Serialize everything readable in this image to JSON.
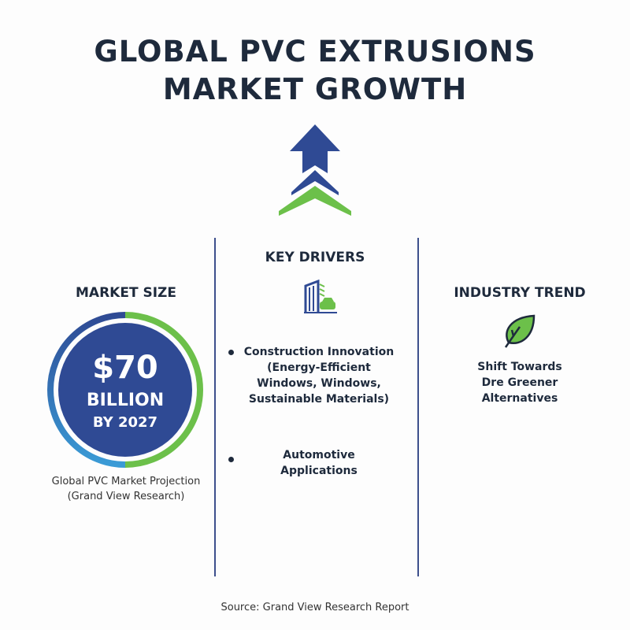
{
  "title": {
    "line1": "GLOBAL PVC EXTRUSIONS",
    "line2": "MARKET GROWTH"
  },
  "icons": {
    "hero": "growth-arrow-icon",
    "drivers": "building-car-icon",
    "trend": "leaf-icon"
  },
  "colors": {
    "navy": "#2f4a94",
    "green": "#6cc04a",
    "light_blue": "#3a9bd6",
    "text": "#1e2a3c"
  },
  "market_size": {
    "heading": "MARKET SIZE",
    "value": "$70",
    "unit": "BILLION",
    "year": "BY 2027",
    "caption_line1": "Global PVC Market Projection",
    "caption_line2": "(Grand View Research)"
  },
  "key_drivers": {
    "heading": "KEY DRIVERS",
    "items": [
      {
        "line1": "Construction Innovation",
        "line2": "(Energy-Efficient",
        "line3": "Windows, Windows,",
        "line4": "Sustainable Materials)"
      },
      {
        "line1": "Automotive",
        "line2": "Applications"
      }
    ]
  },
  "industry_trend": {
    "heading": "INDUSTRY TREND",
    "line1": "Shift Towards",
    "line2": "Dre Greener",
    "line3": "Alternatives"
  },
  "source": "Source: Grand View Research Report"
}
